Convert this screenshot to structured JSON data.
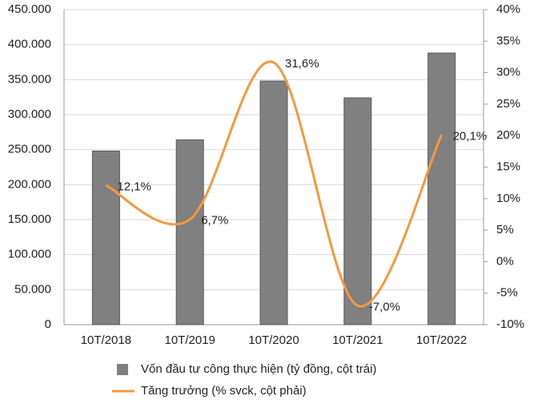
{
  "chart_data": {
    "type": "bar-line",
    "categories": [
      "10T/2018",
      "10T/2019",
      "10T/2020",
      "10T/2021",
      "10T/2022"
    ],
    "series": [
      {
        "name": "Vốn đầu tư công thực hiện (tỷ đồng, cột trái)",
        "type": "bar",
        "color": "#808080",
        "values": [
          248000,
          264000,
          348000,
          324000,
          388000
        ]
      },
      {
        "name": "Tăng trưởng (% svck, cột phải)",
        "type": "line",
        "axis": "y2",
        "color": "#f4993b",
        "values": [
          12.1,
          6.7,
          31.6,
          -7.0,
          20.1
        ],
        "value_labels": [
          "12,1%",
          "6,7%",
          "31,6%",
          "-7,0%",
          "20,1%"
        ]
      }
    ],
    "ylim": [
      0,
      450000
    ],
    "yticks": [
      0,
      {
        "value": 50000,
        "label": "50.000"
      },
      {
        "value": 100000,
        "label": "100.000"
      },
      {
        "value": 150000,
        "label": "150.000"
      },
      {
        "value": 200000,
        "label": "200.000"
      },
      {
        "value": 250000,
        "label": "250.000"
      },
      {
        "value": 300000,
        "label": "300.000"
      },
      {
        "value": 350000,
        "label": "350.000"
      },
      {
        "value": 400000,
        "label": "400.000"
      },
      {
        "value": 450000,
        "label": "450.000"
      }
    ],
    "y2lim": [
      -10,
      40
    ],
    "y2ticks": [
      {
        "value": -10,
        "label": "-10%"
      },
      {
        "value": -5,
        "label": "-5%"
      },
      {
        "value": 0,
        "label": "0%"
      },
      {
        "value": 5,
        "label": "5%"
      },
      {
        "value": 10,
        "label": "10%"
      },
      {
        "value": 15,
        "label": "15%"
      },
      {
        "value": 20,
        "label": "20%"
      },
      {
        "value": 25,
        "label": "25%"
      },
      {
        "value": 30,
        "label": "30%"
      },
      {
        "value": 35,
        "label": "35%"
      },
      {
        "value": 40,
        "label": "40%"
      }
    ],
    "grid": true
  }
}
